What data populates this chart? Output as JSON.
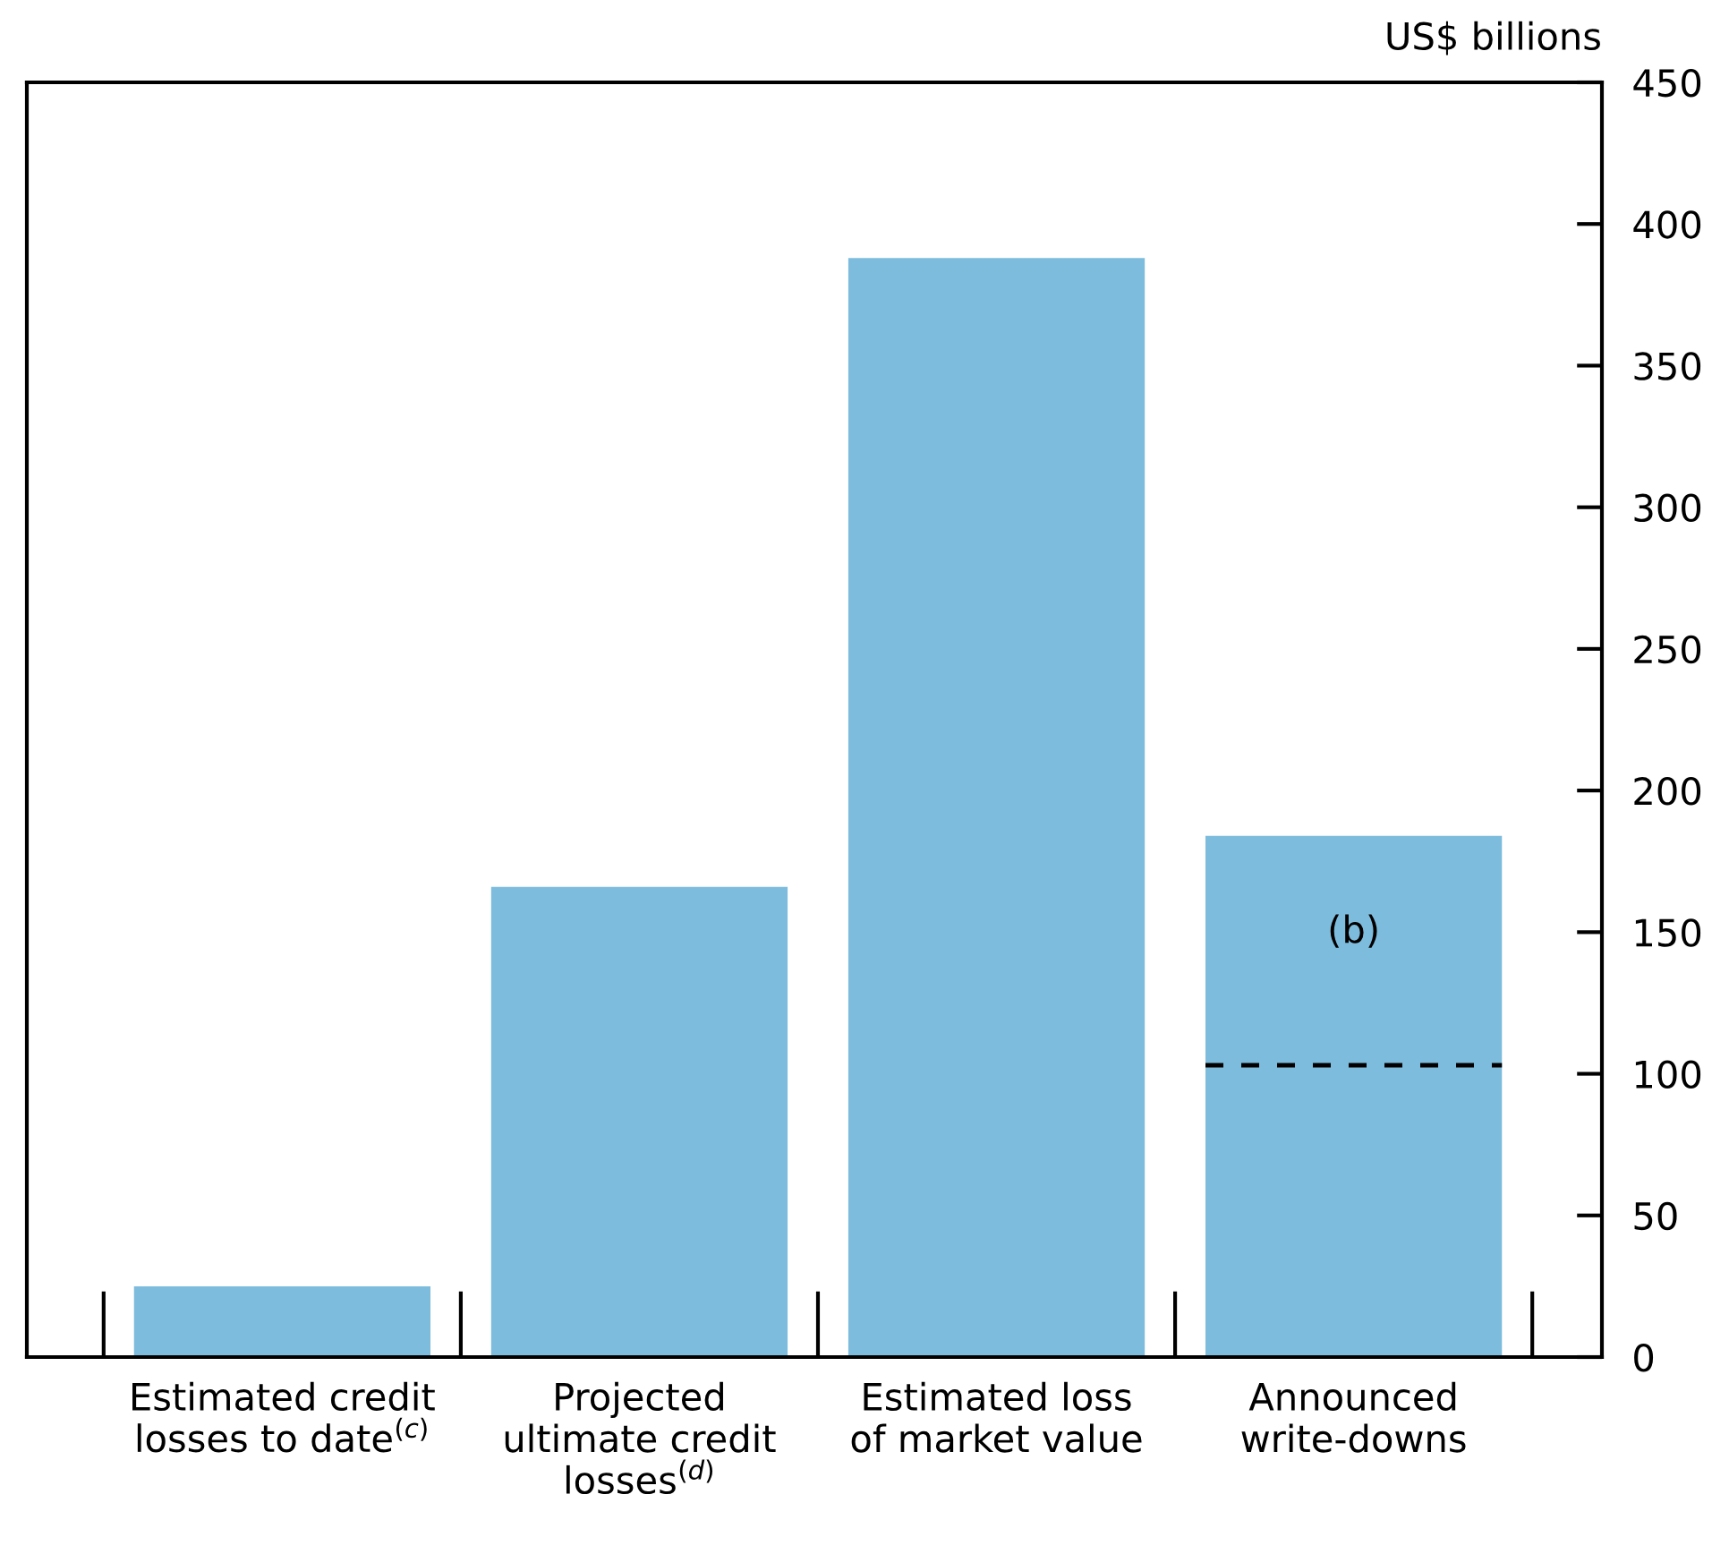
{
  "chart_data": {
    "type": "bar",
    "ylabel": "US$ billions",
    "categories": [
      "Estimated credit\nlosses to date$^{(c)}$",
      "Projected\nultimate credit\nlosses$^{(d)}$",
      "Estimated loss\nof market value",
      "Announced\nwrite-downs"
    ],
    "values": [
      25,
      166,
      388,
      184
    ],
    "color": "#7dbcdc",
    "ylim": [
      0,
      450
    ],
    "yticks": [
      0,
      50,
      100,
      150,
      200,
      250,
      300,
      350,
      400,
      450
    ],
    "grid": false,
    "legend": false,
    "ref_lines": [
      {
        "axis": "y",
        "value": 103,
        "label": "(b)",
        "line_style": "dashed",
        "color": "#000000"
      }
    ]
  }
}
